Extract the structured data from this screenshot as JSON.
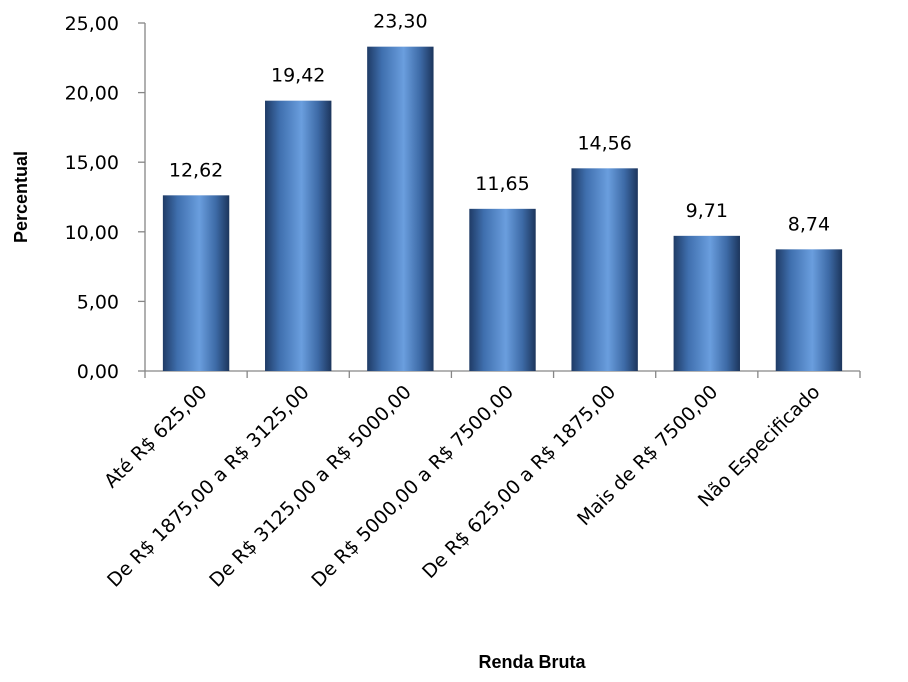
{
  "chart_data": {
    "type": "bar",
    "xlabel": "Renda Bruta",
    "ylabel": "Percentual",
    "ylim": [
      0,
      25
    ],
    "yticks": [
      "0,00",
      "5,00",
      "10,00",
      "15,00",
      "20,00",
      "25,00"
    ],
    "grid": false,
    "legend": "none",
    "categories": [
      "Até R$ 625,00",
      "De R$ 1875,00 a R$ 3125,00",
      "De R$ 3125,00 a R$ 5000,00",
      "De R$ 5000,00 a R$ 7500,00",
      "De R$ 625,00 a R$ 1875,00",
      "Mais de R$ 7500,00",
      "Não Especificado"
    ],
    "values": [
      12.62,
      19.42,
      23.3,
      11.65,
      14.56,
      9.71,
      8.74
    ],
    "value_labels": [
      "12,62",
      "19,42",
      "23,30",
      "11,65",
      "14,56",
      "9,71",
      "8,74"
    ],
    "bar_color": "#4a7ebb"
  }
}
